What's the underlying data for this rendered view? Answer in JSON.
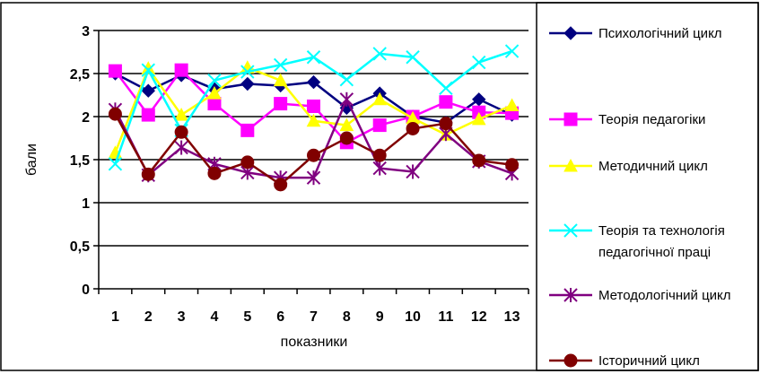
{
  "chart_data": {
    "type": "line",
    "title": "",
    "xlabel": "показники",
    "ylabel": "бали",
    "ylim": [
      0,
      3
    ],
    "yticks": [
      "0",
      "0,5",
      "1",
      "1,5",
      "2",
      "2,5",
      "3"
    ],
    "categories": [
      "1",
      "2",
      "3",
      "4",
      "5",
      "6",
      "7",
      "8",
      "9",
      "10",
      "11",
      "12",
      "13"
    ],
    "grid": true,
    "legend_position": "right",
    "series": [
      {
        "name": "Психологічний цикл",
        "color": "#000080",
        "marker": "diamond",
        "values": [
          2.5,
          2.3,
          2.48,
          2.32,
          2.38,
          2.36,
          2.4,
          2.1,
          2.27,
          2.0,
          1.93,
          2.2,
          2.02
        ]
      },
      {
        "name": "Теорія педагогіки",
        "color": "#ff00ff",
        "marker": "square",
        "values": [
          2.53,
          2.02,
          2.54,
          2.15,
          1.84,
          2.15,
          2.12,
          1.7,
          1.9,
          2.0,
          2.17,
          2.05,
          2.04
        ]
      },
      {
        "name": "Методичний цикл",
        "color": "#ffff00",
        "marker": "triangle",
        "values": [
          1.58,
          2.56,
          2.02,
          2.27,
          2.57,
          2.42,
          1.95,
          1.9,
          2.2,
          1.98,
          1.79,
          1.97,
          2.13
        ]
      },
      {
        "name": "Теорія та технологія педагогічної праці",
        "label_lines": [
          "Теорія та технологія",
          "педагогічної праці"
        ],
        "color": "#00ffff",
        "marker": "x",
        "values": [
          1.45,
          2.54,
          1.84,
          2.42,
          2.52,
          2.6,
          2.69,
          2.43,
          2.73,
          2.69,
          2.33,
          2.63,
          2.76
        ]
      },
      {
        "name": "Методологічний цикл",
        "color": "#800080",
        "marker": "star",
        "values": [
          2.08,
          1.32,
          1.64,
          1.45,
          1.35,
          1.29,
          1.29,
          2.2,
          1.4,
          1.36,
          1.8,
          1.48,
          1.34
        ]
      },
      {
        "name": "Історичний цикл",
        "color": "#800000",
        "marker": "circle",
        "values": [
          2.03,
          1.33,
          1.82,
          1.34,
          1.47,
          1.21,
          1.55,
          1.75,
          1.55,
          1.86,
          1.92,
          1.49,
          1.44
        ]
      }
    ]
  }
}
